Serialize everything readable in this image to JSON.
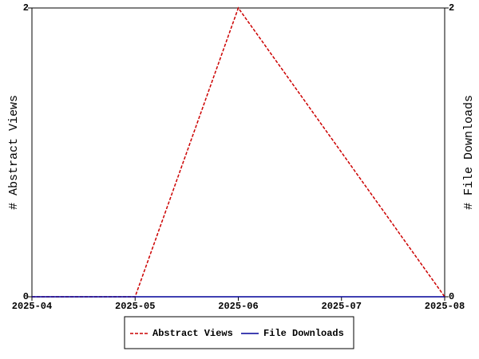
{
  "chart_data": {
    "type": "line",
    "categories": [
      "2025-04",
      "2025-05",
      "2025-06",
      "2025-07",
      "2025-08"
    ],
    "y_label": "# Abstract Views",
    "y2_label": "# File Downloads",
    "ylim": [
      0,
      2
    ],
    "yticks": [
      0,
      2
    ],
    "y2lim": [
      0,
      2
    ],
    "y2ticks": [
      0,
      2
    ],
    "series": [
      {
        "name": "Abstract Views",
        "color": "#cc0000",
        "dash": "dashed",
        "values": [
          0,
          0,
          2,
          1,
          0
        ]
      },
      {
        "name": "File Downloads",
        "color": "#000099",
        "dash": "solid",
        "axis": "y2",
        "values": [
          0,
          0,
          0,
          0,
          0
        ]
      }
    ]
  }
}
